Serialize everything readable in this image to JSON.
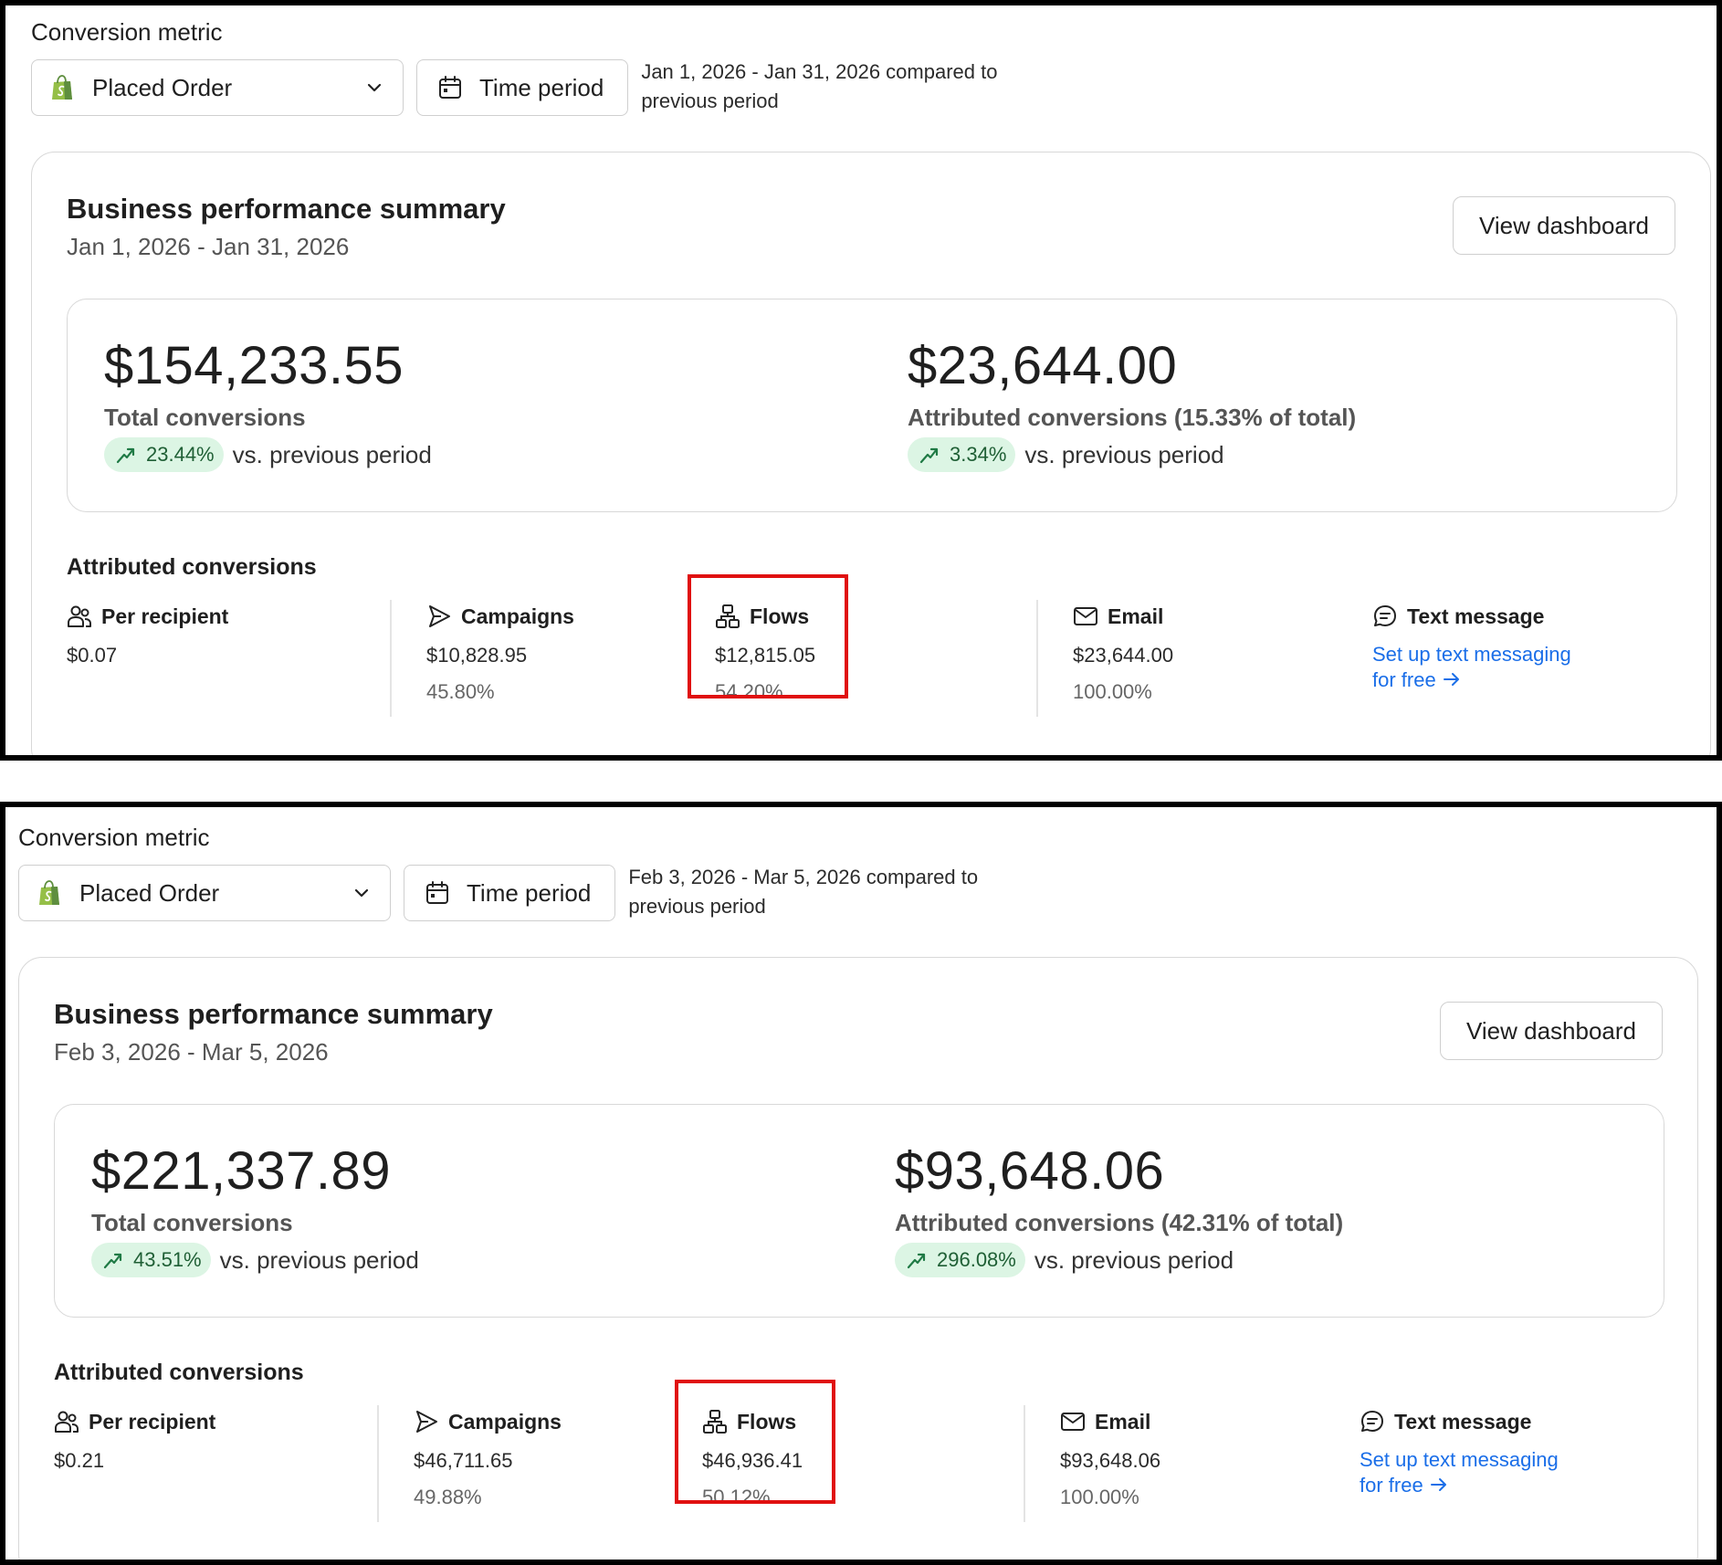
{
  "panels": [
    {
      "conversion_metric_label": "Conversion metric",
      "metric_select": "Placed Order",
      "time_period_button": "Time period",
      "range_note": "Jan 1, 2026 - Jan 31, 2026 compared to previous period",
      "summary": {
        "title": "Business performance summary",
        "subtitle": "Jan 1, 2026 - Jan 31, 2026",
        "view_dashboard": "View dashboard",
        "total_value": "$154,233.55",
        "total_label": "Total conversions",
        "total_delta": "23.44%",
        "vs_text": "vs. previous period",
        "attributed_value": "$23,644.00",
        "attributed_label": "Attributed conversions (15.33% of total)",
        "attributed_delta": "3.34%"
      },
      "attributed": {
        "title": "Attributed conversions",
        "per_recipient_label": "Per recipient",
        "per_recipient_value": "$0.07",
        "campaigns_label": "Campaigns",
        "campaigns_value": "$10,828.95",
        "campaigns_pct": "45.80%",
        "flows_label": "Flows",
        "flows_value": "$12,815.05",
        "flows_pct": "54.20%",
        "email_label": "Email",
        "email_value": "$23,644.00",
        "email_pct": "100.00%",
        "text_label": "Text message",
        "text_link_line1": "Set up text messaging",
        "text_link_line2": "for free"
      }
    },
    {
      "conversion_metric_label": "Conversion metric",
      "metric_select": "Placed Order",
      "time_period_button": "Time period",
      "range_note": "Feb 3, 2026 - Mar 5, 2026 compared to previous period",
      "summary": {
        "title": "Business performance summary",
        "subtitle": "Feb 3, 2026 - Mar 5, 2026",
        "view_dashboard": "View dashboard",
        "total_value": "$221,337.89",
        "total_label": "Total conversions",
        "total_delta": "43.51%",
        "vs_text": "vs. previous period",
        "attributed_value": "$93,648.06",
        "attributed_label": "Attributed conversions (42.31% of total)",
        "attributed_delta": "296.08%"
      },
      "attributed": {
        "title": "Attributed conversions",
        "per_recipient_label": "Per recipient",
        "per_recipient_value": "$0.21",
        "campaigns_label": "Campaigns",
        "campaigns_value": "$46,711.65",
        "campaigns_pct": "49.88%",
        "flows_label": "Flows",
        "flows_value": "$46,936.41",
        "flows_pct": "50.12%",
        "email_label": "Email",
        "email_value": "$93,648.06",
        "email_pct": "100.00%",
        "text_label": "Text message",
        "text_link_line1": "Set up text messaging",
        "text_link_line2": "for free"
      }
    }
  ],
  "colors": {
    "accent_link": "#1a6ee8",
    "delta_bg": "#dcf5e4",
    "delta_fg": "#1f5f35",
    "highlight": "#e01010",
    "shopify_green": "#5e8e3e"
  },
  "icons": [
    "shopify-bag-icon",
    "chevron-down-icon",
    "calendar-icon",
    "trend-up-icon",
    "people-icon",
    "send-icon",
    "flows-icon",
    "mail-icon",
    "chat-icon",
    "arrow-right-icon"
  ]
}
